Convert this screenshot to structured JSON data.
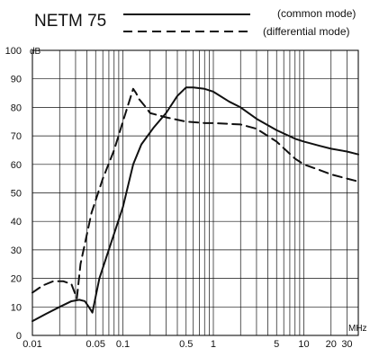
{
  "chart_data": {
    "type": "line",
    "title": "NETM 75",
    "xlabel_unit": "MHz",
    "ylabel_unit": "dB",
    "x_scale": "log",
    "xlim": [
      0.01,
      40
    ],
    "ylim": [
      0,
      100
    ],
    "grid": true,
    "legend_position": "top-right",
    "x_tick_labels": [
      "0.01",
      "0.05",
      "0.1",
      "0.5",
      "1",
      "5",
      "10",
      "20",
      "30"
    ],
    "x_tick_values": [
      0.01,
      0.05,
      0.1,
      0.5,
      1,
      5,
      10,
      20,
      30
    ],
    "y_tick_labels": [
      "0",
      "10",
      "20",
      "30",
      "40",
      "50",
      "60",
      "70",
      "80",
      "90",
      "100"
    ],
    "y_tick_values": [
      0,
      10,
      20,
      30,
      40,
      50,
      60,
      70,
      80,
      90,
      100
    ],
    "series": [
      {
        "name": "(common mode)",
        "style": "solid",
        "color": "#111111",
        "x": [
          0.01,
          0.014,
          0.02,
          0.027,
          0.033,
          0.038,
          0.042,
          0.044,
          0.046,
          0.055,
          0.075,
          0.1,
          0.13,
          0.16,
          0.22,
          0.3,
          0.4,
          0.5,
          0.6,
          0.8,
          1,
          1.5,
          2,
          3,
          5,
          8,
          10,
          15,
          20,
          30,
          40
        ],
        "y": [
          5,
          7.5,
          10,
          12,
          12.5,
          12,
          10,
          9,
          8,
          20,
          33,
          45,
          60,
          67,
          73,
          78,
          84,
          87,
          87,
          86.5,
          85.5,
          82,
          80,
          76,
          72,
          69,
          68,
          66.5,
          65.5,
          64.5,
          63.5
        ]
      },
      {
        "name": "(differential mode)",
        "style": "dashed",
        "color": "#111111",
        "x": [
          0.01,
          0.013,
          0.017,
          0.022,
          0.027,
          0.031,
          0.034,
          0.045,
          0.06,
          0.08,
          0.1,
          0.12,
          0.13,
          0.14,
          0.15,
          0.18,
          0.2,
          0.3,
          0.5,
          0.8,
          1,
          2,
          3,
          5,
          8,
          10,
          15,
          20,
          30,
          40
        ],
        "y": [
          15,
          17.5,
          19,
          19,
          18,
          13,
          25,
          43,
          55,
          65,
          75,
          83,
          86.5,
          85,
          83,
          80,
          78,
          76.5,
          75,
          74.5,
          74.5,
          74,
          72.5,
          68,
          62,
          60,
          58,
          56.5,
          55,
          54
        ]
      }
    ]
  }
}
